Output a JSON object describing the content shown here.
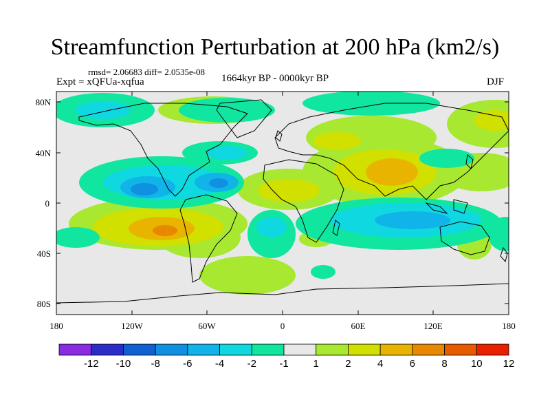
{
  "title": "Streamfunction Perturbation at 200 hPa (km2/s)",
  "stats": "rmsd= 2.06683 diff= 2.0535e-08",
  "expt": "Expt = xQFUa-xqfua",
  "period": "1664kyr BP - 0000kyr BP",
  "season": "DJF",
  "lat_labels": [
    "80N",
    "40N",
    "0",
    "40S",
    "80S"
  ],
  "lon_labels": [
    "180",
    "120W",
    "60W",
    "0",
    "60E",
    "120E",
    "180"
  ],
  "colorbar": {
    "labels": [
      "-12",
      "-10",
      "-8",
      "-6",
      "-4",
      "-2",
      "-1",
      "1",
      "2",
      "4",
      "6",
      "8",
      "10",
      "12"
    ],
    "colors": [
      "#8a2be2",
      "#2c2cc8",
      "#1060d0",
      "#1090e0",
      "#10b4e8",
      "#10d8e0",
      "#10e6a0",
      "#e8e8e8",
      "#a8e830",
      "#d2e000",
      "#e8b400",
      "#e88800",
      "#e85a00",
      "#e82000"
    ]
  },
  "colors": {
    "neutral": "#e8e8e8",
    "coast": "#000000"
  }
}
